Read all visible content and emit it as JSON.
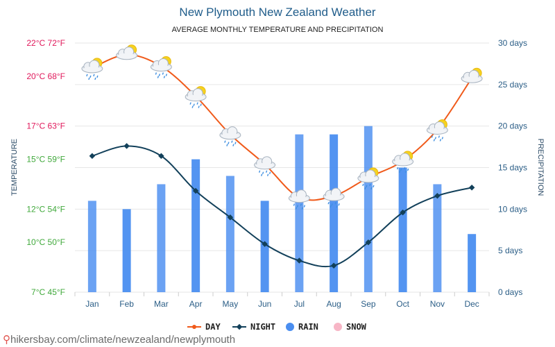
{
  "title": "New Plymouth New Zealand Weather",
  "subtitle": "AVERAGE MONTHLY TEMPERATURE AND PRECIPITATION",
  "footer_text": "hikersbay.com/climate/newzealand/newplymouth",
  "colors": {
    "day": "#f05a1a",
    "night": "#12405a",
    "rain": "#4a8ef0",
    "snow": "#f7b6c6",
    "temp_low": "#3fa83a",
    "temp_high": "#e0175a",
    "grid": "#e6e6e6"
  },
  "chart_data": {
    "type": "bar+line",
    "categories": [
      "Jan",
      "Feb",
      "Mar",
      "Apr",
      "May",
      "Jun",
      "Jul",
      "Aug",
      "Sep",
      "Oct",
      "Nov",
      "Dec"
    ],
    "left_axis": {
      "label": "TEMPERATURE",
      "range": [
        7,
        22
      ],
      "ticks": [
        {
          "value": 7,
          "label": "7°C 45°F"
        },
        {
          "value": 10,
          "label": "10°C 50°F"
        },
        {
          "value": 12,
          "label": "12°C 54°F"
        },
        {
          "value": 15,
          "label": "15°C 59°F"
        },
        {
          "value": 17,
          "label": "17°C 63°F"
        },
        {
          "value": 20,
          "label": "20°C 68°F"
        },
        {
          "value": 22,
          "label": "22°C 72°F"
        }
      ]
    },
    "right_axis": {
      "label": "PRECIPITATION",
      "range": [
        0,
        30
      ],
      "ticks": [
        {
          "value": 0,
          "label": "0 days"
        },
        {
          "value": 5,
          "label": "5 days"
        },
        {
          "value": 10,
          "label": "10 days"
        },
        {
          "value": 15,
          "label": "15 days"
        },
        {
          "value": 20,
          "label": "20 days"
        },
        {
          "value": 25,
          "label": "25 days"
        },
        {
          "value": 30,
          "label": "30 days"
        }
      ]
    },
    "series": [
      {
        "name": "DAY",
        "kind": "line",
        "axis": "left",
        "values": [
          20.5,
          21.3,
          20.6,
          18.8,
          16.5,
          14.7,
          12.7,
          12.8,
          13.9,
          14.9,
          16.8,
          19.9
        ]
      },
      {
        "name": "NIGHT",
        "kind": "line",
        "axis": "left",
        "values": [
          15.2,
          15.8,
          15.2,
          13.1,
          11.5,
          9.9,
          8.9,
          8.6,
          10.0,
          11.8,
          12.8,
          13.3
        ]
      },
      {
        "name": "RAIN",
        "kind": "bar",
        "axis": "right",
        "values": [
          11,
          10,
          13,
          16,
          14,
          11,
          19,
          19,
          20,
          15,
          13,
          7
        ]
      },
      {
        "name": "SNOW",
        "kind": "bar",
        "axis": "right",
        "values": [
          0,
          0,
          0,
          0,
          0,
          0,
          0,
          0,
          0,
          0,
          0,
          0
        ]
      }
    ],
    "weather_icons": [
      "partly-cloudy-rain",
      "partly-cloudy",
      "partly-cloudy-rain",
      "partly-cloudy-rain",
      "cloud-rain",
      "cloud-rain",
      "cloud-rain",
      "cloud-rain",
      "partly-cloudy-rain",
      "partly-cloudy-rain",
      "partly-cloudy-rain",
      "partly-cloudy"
    ],
    "legend": [
      "DAY",
      "NIGHT",
      "RAIN",
      "SNOW"
    ],
    "legend_position": "bottom-center",
    "grid": true
  }
}
